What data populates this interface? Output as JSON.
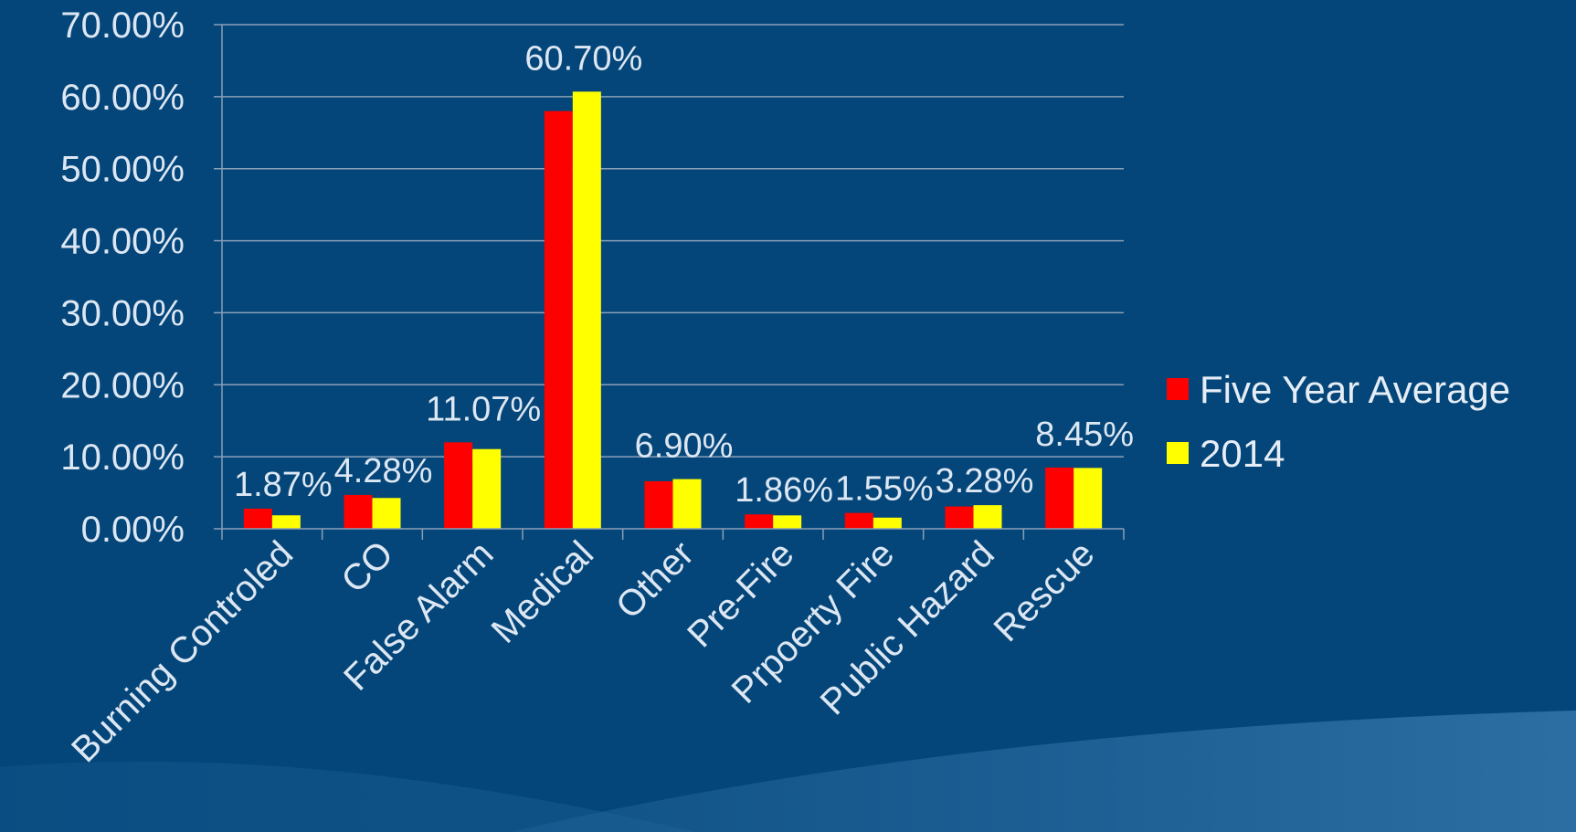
{
  "chart_data": {
    "type": "bar",
    "categories": [
      "Burning Controled",
      "CO",
      "False Alarm",
      "Medical",
      "Other",
      "Pre-Fire",
      "Prpoerty Fire",
      "Public Hazard",
      "Rescue"
    ],
    "series": [
      {
        "name": "Five Year Average",
        "values": [
          2.8,
          4.7,
          12.0,
          58.0,
          6.6,
          2.0,
          2.2,
          3.1,
          8.5
        ],
        "color": "#ff0000"
      },
      {
        "name": "2014",
        "values": [
          1.87,
          4.28,
          11.07,
          60.7,
          6.9,
          1.86,
          1.55,
          3.28,
          8.45
        ],
        "color": "#ffff00"
      }
    ],
    "data_labels": [
      "1.87%",
      "4.28%",
      "11.07%",
      "60.70%",
      "6.90%",
      "1.86%",
      "1.55%",
      "3.28%",
      "8.45%"
    ],
    "y_ticks": [
      "0.00%",
      "10.00%",
      "20.00%",
      "30.00%",
      "40.00%",
      "50.00%",
      "60.00%",
      "70.00%"
    ],
    "ylim": [
      0,
      70
    ],
    "grid": true,
    "legend_position": "right",
    "title": "",
    "xlabel": "",
    "ylabel": ""
  },
  "colors": {
    "background": "#044679",
    "gridline": "#8a9fb8",
    "axis": "#8a9fb8",
    "text": "#dde7f3"
  }
}
